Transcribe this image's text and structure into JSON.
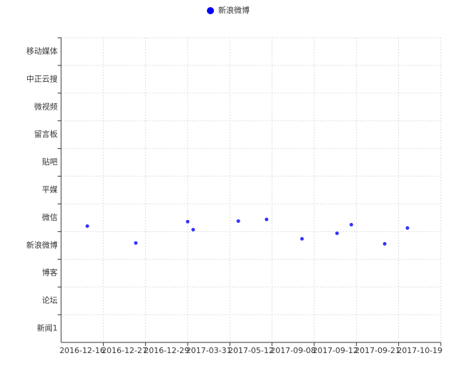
{
  "chart_data": {
    "type": "scatter",
    "x": [
      0.12,
      1.27,
      2.5,
      2.63,
      3.7,
      4.37,
      5.21,
      6.04,
      6.38,
      7.17,
      7.71
    ],
    "series": [
      {
        "name": "新浪微博",
        "color": "#0000ff",
        "values": [
          3.7,
          3.09,
          3.86,
          3.57,
          3.88,
          3.94,
          3.24,
          3.44,
          3.75,
          3.06,
          3.63
        ]
      }
    ],
    "xlim": [
      -0.5,
      8.5
    ],
    "xticks": [
      {
        "value": 0,
        "label": "2016-12-16"
      },
      {
        "value": 1,
        "label": "2016-12-27"
      },
      {
        "value": 2,
        "label": "2016-12-29"
      },
      {
        "value": 3,
        "label": "2017-03-31"
      },
      {
        "value": 4,
        "label": "2017-05-12"
      },
      {
        "value": 5,
        "label": "2017-09-08"
      },
      {
        "value": 6,
        "label": "2017-09-12"
      },
      {
        "value": 7,
        "label": "2017-09-21"
      },
      {
        "value": 8,
        "label": "2017-10-19"
      }
    ],
    "ylim": [
      -0.5,
      10.5
    ],
    "yticks": [
      {
        "value": 0,
        "label": "新闻1"
      },
      {
        "value": 1,
        "label": "论坛"
      },
      {
        "value": 2,
        "label": "博客"
      },
      {
        "value": 3,
        "label": "新浪微博"
      },
      {
        "value": 4,
        "label": "微信"
      },
      {
        "value": 5,
        "label": "平媒"
      },
      {
        "value": 6,
        "label": "贴吧"
      },
      {
        "value": 7,
        "label": "留言板"
      },
      {
        "value": 8,
        "label": "微视频"
      },
      {
        "value": 9,
        "label": "中正云搜"
      },
      {
        "value": 10,
        "label": "移动媒体"
      }
    ],
    "grid": true,
    "legend": "top"
  }
}
